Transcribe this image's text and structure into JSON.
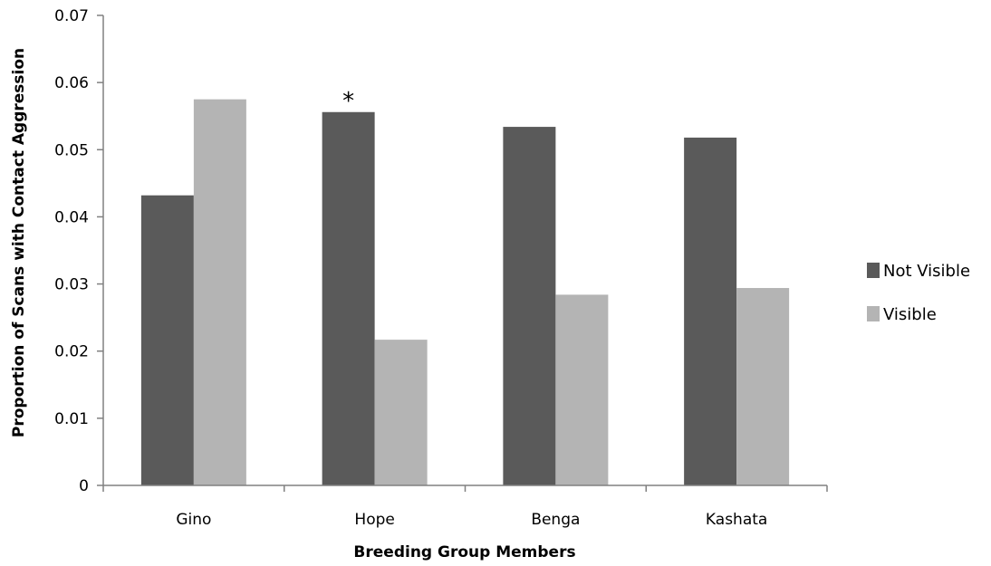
{
  "chart_data": {
    "type": "bar",
    "title": "",
    "xlabel": "Breeding Group Members",
    "ylabel": "Proportion of Scans with Contact Aggression",
    "ylim": [
      0,
      0.07
    ],
    "yticks": [
      0,
      0.01,
      0.02,
      0.03,
      0.04,
      0.05,
      0.06,
      0.07
    ],
    "ytick_labels": [
      "0",
      "0.01",
      "0.02",
      "0.03",
      "0.04",
      "0.05",
      "0.06",
      "0.07"
    ],
    "categories": [
      "Gino",
      "Hope",
      "Benga",
      "Kashata"
    ],
    "series": [
      {
        "name": "Not Visible",
        "values": [
          0.0432,
          0.0556,
          0.0534,
          0.0518
        ],
        "color": "#5a5a5a"
      },
      {
        "name": "Visible",
        "values": [
          0.0575,
          0.0217,
          0.0284,
          0.0294
        ],
        "color": "#b4b4b4"
      }
    ],
    "grid": false,
    "legend": "right",
    "annotations": [
      {
        "text": "*",
        "category": "Hope",
        "series": "Not Visible"
      }
    ]
  }
}
